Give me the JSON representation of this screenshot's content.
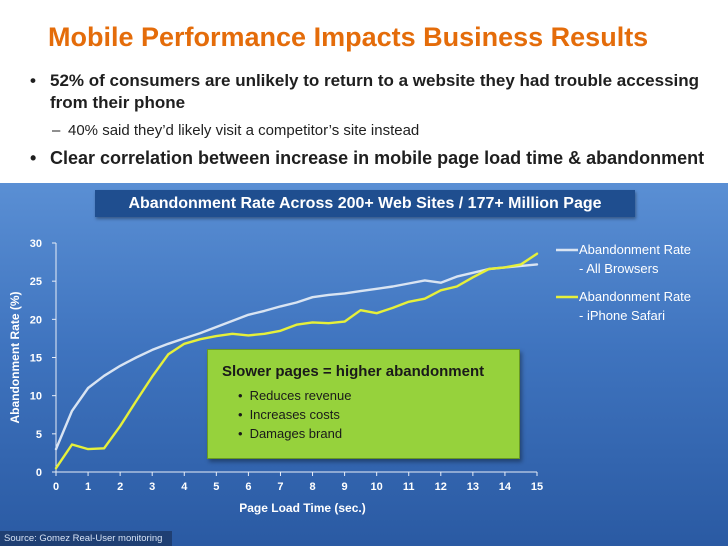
{
  "slide": {
    "title": "Mobile Performance Impacts Business Results",
    "bullet1": "52% of consumers are unlikely to return to a website they had trouble accessing from their phone",
    "sub_bullet1": "40% said they’d likely visit a competitor’s site instead",
    "bullet2": "Clear correlation between increase in mobile page load time & abandonment",
    "source": "Source: Gomez Real-User monitoring"
  },
  "callout": {
    "title": "Slower pages = higher abandonment",
    "items": [
      "Reduces revenue",
      "Increases costs",
      "Damages brand"
    ]
  },
  "colors": {
    "title_orange": "#e46c0a",
    "series_all_browsers": "#d9e4f2",
    "series_iphone_safari": "#e6f03a",
    "callout_green": "#96d23c"
  },
  "chart_data": {
    "type": "line",
    "title": "Abandonment Rate Across 200+ Web Sites / 177+ Million Page",
    "xlabel": "Page Load Time (sec.)",
    "ylabel": "Abandonment Rate (%)",
    "xlim": [
      0,
      15
    ],
    "ylim": [
      0,
      30
    ],
    "x_ticks": [
      0,
      1,
      2,
      3,
      4,
      5,
      6,
      7,
      8,
      9,
      10,
      11,
      12,
      13,
      14,
      15
    ],
    "y_ticks": [
      0,
      5,
      10,
      15,
      20,
      25,
      30
    ],
    "grid": false,
    "legend": "right",
    "series": [
      {
        "name": "Abandonment Rate - All Browsers",
        "legend_lines": [
          "Abandonment Rate",
          "- All Browsers"
        ],
        "color": "#d9e4f2",
        "x": [
          0,
          0.5,
          1,
          1.5,
          2,
          2.5,
          3,
          3.5,
          4,
          4.5,
          5,
          5.5,
          6,
          6.5,
          7,
          7.5,
          8,
          8.5,
          9,
          9.5,
          10,
          10.5,
          11,
          11.5,
          12,
          12.5,
          13,
          13.5,
          14,
          14.5,
          15
        ],
        "values": [
          3,
          8,
          11,
          12.6,
          13.9,
          15,
          16,
          16.8,
          17.5,
          18.2,
          19,
          19.8,
          20.6,
          21.1,
          21.7,
          22.2,
          22.9,
          23.2,
          23.4,
          23.7,
          24,
          24.3,
          24.7,
          25.1,
          24.8,
          25.6,
          26.1,
          26.6,
          26.8,
          27,
          27.2
        ]
      },
      {
        "name": "Abandonment Rate - iPhone Safari",
        "legend_lines": [
          "Abandonment Rate",
          "- iPhone Safari"
        ],
        "color": "#e6f03a",
        "x": [
          0,
          0.5,
          1,
          1.5,
          2,
          2.5,
          3,
          3.5,
          4,
          4.5,
          5,
          5.5,
          6,
          6.5,
          7,
          7.5,
          8,
          8.5,
          9,
          9.5,
          10,
          10.5,
          11,
          11.5,
          12,
          12.5,
          13,
          13.5,
          14,
          14.5,
          15
        ],
        "values": [
          0.5,
          3.6,
          3,
          3.1,
          6,
          9.3,
          12.5,
          15.4,
          16.8,
          17.4,
          17.8,
          18.1,
          17.9,
          18.1,
          18.5,
          19.3,
          19.6,
          19.5,
          19.7,
          21.2,
          20.8,
          21.5,
          22.3,
          22.7,
          23.8,
          24.3,
          25.5,
          26.6,
          26.8,
          27.2,
          28.6
        ]
      }
    ]
  }
}
